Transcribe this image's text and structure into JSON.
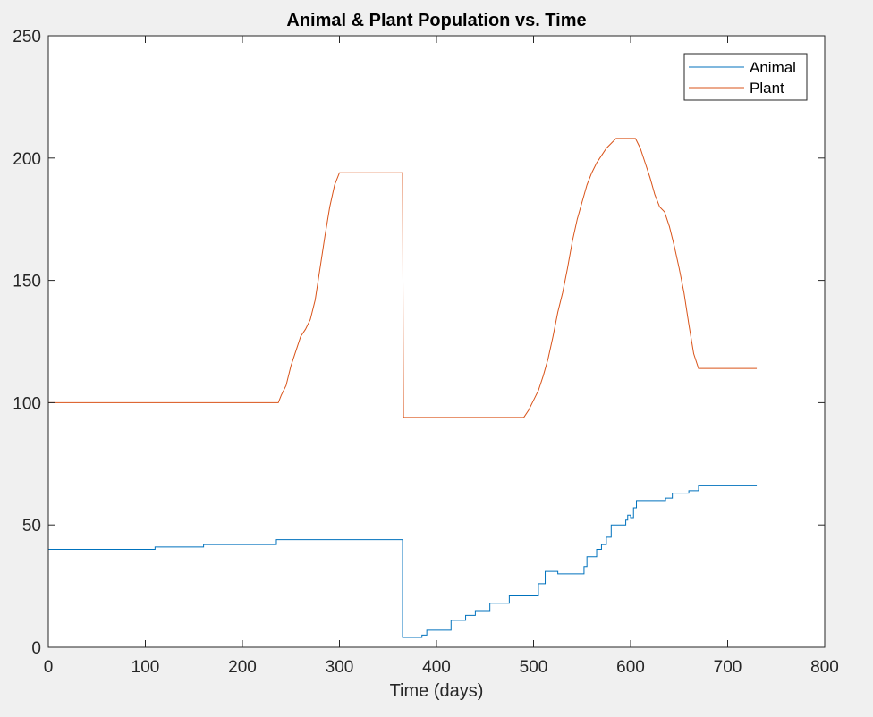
{
  "chart_data": {
    "type": "line",
    "title": "Animal & Plant Population vs. Time",
    "xlabel": "Time (days)",
    "ylabel": "",
    "xlim": [
      0,
      800
    ],
    "ylim": [
      0,
      250
    ],
    "xticks": [
      0,
      100,
      200,
      300,
      400,
      500,
      600,
      700,
      800
    ],
    "yticks": [
      0,
      50,
      100,
      150,
      200,
      250
    ],
    "grid": false,
    "legend_position": "top-right",
    "series": [
      {
        "name": "Animal",
        "color": "#0072BD",
        "step": true,
        "points": [
          [
            0,
            40
          ],
          [
            110,
            40
          ],
          [
            110,
            41
          ],
          [
            160,
            41
          ],
          [
            160,
            42
          ],
          [
            235,
            42
          ],
          [
            235,
            44
          ],
          [
            365,
            44
          ],
          [
            365,
            4
          ],
          [
            385,
            4
          ],
          [
            385,
            5
          ],
          [
            390,
            5
          ],
          [
            390,
            7
          ],
          [
            415,
            7
          ],
          [
            415,
            11
          ],
          [
            430,
            11
          ],
          [
            430,
            13
          ],
          [
            440,
            13
          ],
          [
            440,
            15
          ],
          [
            455,
            15
          ],
          [
            455,
            18
          ],
          [
            475,
            18
          ],
          [
            475,
            21
          ],
          [
            505,
            21
          ],
          [
            505,
            26
          ],
          [
            512,
            26
          ],
          [
            512,
            31
          ],
          [
            525,
            31
          ],
          [
            525,
            30
          ],
          [
            552,
            30
          ],
          [
            552,
            33
          ],
          [
            555,
            33
          ],
          [
            555,
            37
          ],
          [
            565,
            37
          ],
          [
            565,
            40
          ],
          [
            570,
            40
          ],
          [
            570,
            42
          ],
          [
            575,
            42
          ],
          [
            575,
            45
          ],
          [
            580,
            45
          ],
          [
            580,
            50
          ],
          [
            595,
            50
          ],
          [
            595,
            52
          ],
          [
            597,
            52
          ],
          [
            597,
            54
          ],
          [
            600,
            54
          ],
          [
            600,
            53
          ],
          [
            603,
            53
          ],
          [
            603,
            57
          ],
          [
            606,
            57
          ],
          [
            606,
            60
          ],
          [
            636,
            60
          ],
          [
            636,
            61
          ],
          [
            643,
            61
          ],
          [
            643,
            63
          ],
          [
            660,
            63
          ],
          [
            660,
            64
          ],
          [
            670,
            64
          ],
          [
            670,
            66
          ],
          [
            730,
            66
          ]
        ]
      },
      {
        "name": "Plant",
        "color": "#D95319",
        "step": false,
        "points": [
          [
            0,
            100
          ],
          [
            237,
            100
          ],
          [
            240,
            103
          ],
          [
            245,
            107
          ],
          [
            250,
            115
          ],
          [
            255,
            121
          ],
          [
            260,
            127
          ],
          [
            265,
            130
          ],
          [
            270,
            134
          ],
          [
            275,
            142
          ],
          [
            280,
            155
          ],
          [
            285,
            168
          ],
          [
            290,
            180
          ],
          [
            295,
            189
          ],
          [
            300,
            194
          ],
          [
            365,
            194
          ],
          [
            366,
            94
          ],
          [
            490,
            94
          ],
          [
            495,
            97
          ],
          [
            500,
            101
          ],
          [
            505,
            105
          ],
          [
            510,
            111
          ],
          [
            515,
            118
          ],
          [
            520,
            127
          ],
          [
            525,
            137
          ],
          [
            530,
            145
          ],
          [
            535,
            155
          ],
          [
            540,
            166
          ],
          [
            545,
            175
          ],
          [
            550,
            182
          ],
          [
            555,
            189
          ],
          [
            560,
            194
          ],
          [
            565,
            198
          ],
          [
            570,
            201
          ],
          [
            575,
            204
          ],
          [
            580,
            206
          ],
          [
            585,
            208
          ],
          [
            605,
            208
          ],
          [
            610,
            204
          ],
          [
            615,
            198
          ],
          [
            620,
            192
          ],
          [
            625,
            185
          ],
          [
            630,
            180
          ],
          [
            635,
            178
          ],
          [
            640,
            172
          ],
          [
            645,
            164
          ],
          [
            650,
            155
          ],
          [
            655,
            145
          ],
          [
            660,
            132
          ],
          [
            665,
            120
          ],
          [
            670,
            114
          ],
          [
            730,
            114
          ]
        ]
      }
    ]
  }
}
